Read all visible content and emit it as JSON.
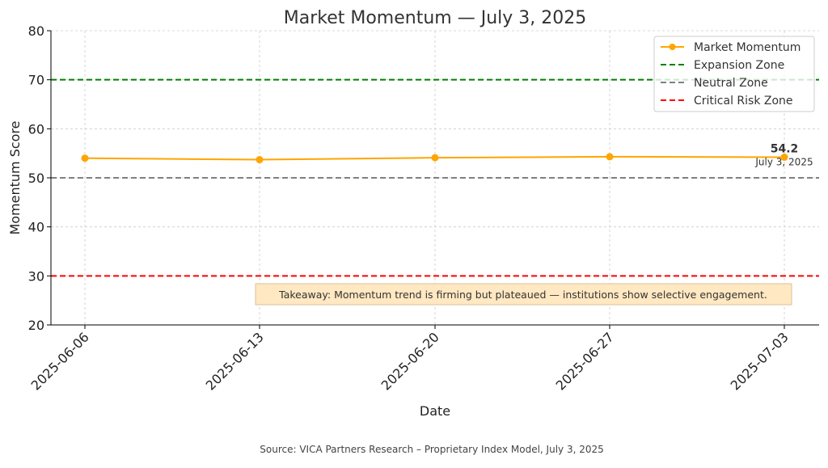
{
  "chart_data": {
    "type": "line",
    "title": "Market Momentum — July 3, 2025",
    "xlabel": "Date",
    "ylabel": "Momentum Score",
    "categories": [
      "2025-06-06",
      "2025-06-13",
      "2025-06-20",
      "2025-06-27",
      "2025-07-03"
    ],
    "ylim": [
      20,
      80
    ],
    "yticks": [
      20,
      30,
      40,
      50,
      60,
      70,
      80
    ],
    "grid": true,
    "legend_position": "top-right",
    "series": [
      {
        "name": "Market Momentum",
        "values": [
          54.0,
          53.7,
          54.1,
          54.3,
          54.2
        ],
        "color": "#FFA500"
      }
    ],
    "reference_lines": [
      {
        "name": "Expansion Zone",
        "value": 70,
        "color": "#008000"
      },
      {
        "name": "Neutral Zone",
        "value": 50,
        "color": "#808080"
      },
      {
        "name": "Critical Risk Zone",
        "value": 30,
        "color": "#FF0000"
      }
    ],
    "annotations": {
      "last_value_label": "54.2",
      "last_date_label": "July 3, 2025",
      "takeaway": "Takeaway: Momentum trend is firming but plateaued — institutions show selective engagement.",
      "takeaway_bg": "#FFE8C2"
    },
    "source": "Source: VICA Partners Research – Proprietary Index Model, July 3, 2025"
  }
}
